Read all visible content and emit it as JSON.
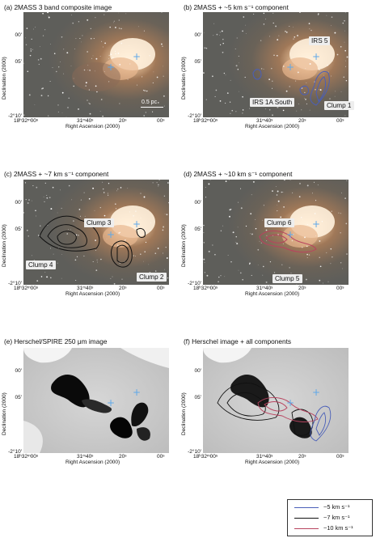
{
  "panels": [
    {
      "title": "(a) 2MASS 3 band composite image"
    },
    {
      "title": "(b) 2MASS + ~5 km s⁻¹ component"
    },
    {
      "title": "(c) 2MASS + ~7 km s⁻¹ component"
    },
    {
      "title": "(d) 2MASS + ~10 km s⁻¹ component"
    },
    {
      "title": "(e) Herschel/SPIRE 250 μm image"
    },
    {
      "title": "(f) Herschel image + all components"
    }
  ],
  "axes": {
    "ylabel": "Declination (2000)",
    "xlabel": "Right Ascension (2000)",
    "dec_ticks": [
      "00'",
      "05'",
      "-2°10'"
    ],
    "ra_ticks": [
      "18ʰ32ᵐ00ˢ",
      "31ᵐ40ˢ",
      "20ˢ",
      "00ˢ"
    ]
  },
  "labels": {
    "irs5": "IRS 5",
    "irs1a": "IRS 1A South",
    "clump1": "Clump 1",
    "clump2": "Clump 2",
    "clump3": "Clump 3",
    "clump4": "Clump 4",
    "clump5": "Clump 5",
    "clump6": "Clump 6"
  },
  "scalebar": "0.5 pc",
  "legend": [
    {
      "text": "~5 km s⁻¹",
      "color": "#4a5fb8"
    },
    {
      "text": "~7 km s⁻¹",
      "color": "#111111"
    },
    {
      "text": "~10 km s⁻¹",
      "color": "#b8435f"
    }
  ],
  "colors": {
    "blue_component": "#4a5fb8",
    "black_component": "#111111",
    "red_component": "#b8435f",
    "marker": "#5fa8e8"
  }
}
